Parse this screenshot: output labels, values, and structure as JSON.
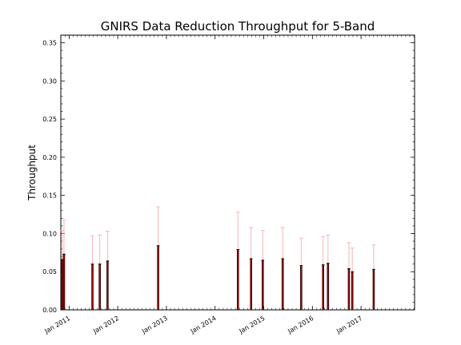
{
  "chart_data": {
    "type": "bar",
    "title": "GNIRS Data Reduction Throughput for 5-Band",
    "xlabel": "",
    "ylabel": "Throughput",
    "ylim": [
      0,
      0.36
    ],
    "xlim": [
      2010.83,
      2018.1
    ],
    "grid": false,
    "y_ticks": [
      "0.00",
      "0.05",
      "0.10",
      "0.15",
      "0.20",
      "0.25",
      "0.30",
      "0.35"
    ],
    "x_ticks": [
      {
        "label": "Jan 2011",
        "value": 2011.0
      },
      {
        "label": "Jan 2012",
        "value": 2012.0
      },
      {
        "label": "Jan 2013",
        "value": 2013.0
      },
      {
        "label": "Jan 2014",
        "value": 2014.0
      },
      {
        "label": "Jan 2015",
        "value": 2015.0
      },
      {
        "label": "Jan 2016",
        "value": 2016.0
      },
      {
        "label": "Jan 2017",
        "value": 2017.0
      }
    ],
    "points": [
      {
        "x": 2010.86,
        "y": 0.066,
        "err_hi": 0.104
      },
      {
        "x": 2010.895,
        "y": 0.073,
        "err_hi": 0.118
      },
      {
        "x": 2011.48,
        "y": 0.06,
        "err_hi": 0.097
      },
      {
        "x": 2011.63,
        "y": 0.06,
        "err_hi": 0.098
      },
      {
        "x": 2011.79,
        "y": 0.064,
        "err_hi": 0.103
      },
      {
        "x": 2012.83,
        "y": 0.084,
        "err_hi": 0.135
      },
      {
        "x": 2014.47,
        "y": 0.079,
        "err_hi": 0.128
      },
      {
        "x": 2014.74,
        "y": 0.067,
        "err_hi": 0.108
      },
      {
        "x": 2014.98,
        "y": 0.065,
        "err_hi": 0.104
      },
      {
        "x": 2015.39,
        "y": 0.067,
        "err_hi": 0.108
      },
      {
        "x": 2015.77,
        "y": 0.058,
        "err_hi": 0.094
      },
      {
        "x": 2016.22,
        "y": 0.059,
        "err_hi": 0.096
      },
      {
        "x": 2016.32,
        "y": 0.061,
        "err_hi": 0.098
      },
      {
        "x": 2016.75,
        "y": 0.054,
        "err_hi": 0.088
      },
      {
        "x": 2016.82,
        "y": 0.05,
        "err_hi": 0.081
      },
      {
        "x": 2017.26,
        "y": 0.053,
        "err_hi": 0.085
      }
    ],
    "colors": {
      "bar": "#3a0000",
      "bar_highlight": "#cc1a1a",
      "errorbar": "#f2b8b8",
      "axis": "#000000"
    }
  }
}
